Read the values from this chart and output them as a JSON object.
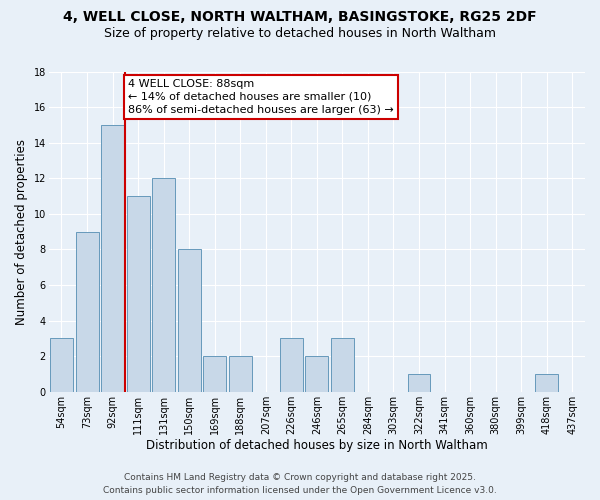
{
  "title": "4, WELL CLOSE, NORTH WALTHAM, BASINGSTOKE, RG25 2DF",
  "subtitle": "Size of property relative to detached houses in North Waltham",
  "xlabel": "Distribution of detached houses by size in North Waltham",
  "ylabel": "Number of detached properties",
  "bins": [
    "54sqm",
    "73sqm",
    "92sqm",
    "111sqm",
    "131sqm",
    "150sqm",
    "169sqm",
    "188sqm",
    "207sqm",
    "226sqm",
    "246sqm",
    "265sqm",
    "284sqm",
    "303sqm",
    "322sqm",
    "341sqm",
    "360sqm",
    "380sqm",
    "399sqm",
    "418sqm",
    "437sqm"
  ],
  "counts": [
    3,
    9,
    15,
    11,
    12,
    8,
    2,
    2,
    0,
    3,
    2,
    3,
    0,
    0,
    1,
    0,
    0,
    0,
    0,
    1,
    0
  ],
  "bar_color": "#c8d8e8",
  "bar_edge_color": "#6699bb",
  "background_color": "#e8f0f8",
  "grid_color": "#ffffff",
  "vline_x_index": 2,
  "vline_color": "#cc0000",
  "annotation_line1": "4 WELL CLOSE: 88sqm",
  "annotation_line2": "← 14% of detached houses are smaller (10)",
  "annotation_line3": "86% of semi-detached houses are larger (63) →",
  "annotation_box_color": "#ffffff",
  "annotation_box_edge": "#cc0000",
  "ylim": [
    0,
    18
  ],
  "yticks": [
    0,
    2,
    4,
    6,
    8,
    10,
    12,
    14,
    16,
    18
  ],
  "footer1": "Contains HM Land Registry data © Crown copyright and database right 2025.",
  "footer2": "Contains public sector information licensed under the Open Government Licence v3.0.",
  "title_fontsize": 10,
  "subtitle_fontsize": 9,
  "axis_label_fontsize": 8.5,
  "tick_fontsize": 7,
  "annotation_fontsize": 8,
  "footer_fontsize": 6.5
}
